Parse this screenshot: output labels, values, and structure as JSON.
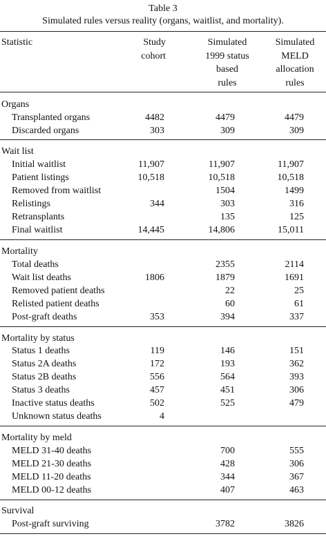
{
  "caption": {
    "number": "Table 3",
    "title": "Simulated rules versus reality (organs, waitlist, and mortality)."
  },
  "header": {
    "statistic": "Statistic",
    "col1": [
      "Study",
      "cohort"
    ],
    "col2": [
      "Simulated",
      "1999 status",
      "based",
      "rules"
    ],
    "col3": [
      "Simulated",
      "MELD",
      "allocation",
      "rules"
    ]
  },
  "sections": [
    {
      "title": "Organs",
      "rows": [
        {
          "label": "Transplanted organs",
          "study": "4482",
          "sim1999": "4479",
          "meld": "4479"
        },
        {
          "label": "Discarded organs",
          "study": "303",
          "sim1999": "309",
          "meld": "309"
        }
      ]
    },
    {
      "title": "Wait list",
      "rows": [
        {
          "label": "Initial waitlist",
          "study": "11,907",
          "sim1999": "11,907",
          "meld": "11,907"
        },
        {
          "label": "Patient listings",
          "study": "10,518",
          "sim1999": "10,518",
          "meld": "10,518"
        },
        {
          "label": "Removed from waitlist",
          "study": "",
          "sim1999": "1504",
          "meld": "1499"
        },
        {
          "label": "Relistings",
          "study": "344",
          "sim1999": "303",
          "meld": "316"
        },
        {
          "label": "Retransplants",
          "study": "",
          "sim1999": "135",
          "meld": "125"
        },
        {
          "label": "Final waitlist",
          "study": "14,445",
          "sim1999": "14,806",
          "meld": "15,011"
        }
      ]
    },
    {
      "title": "Mortality",
      "rows": [
        {
          "label": "Total deaths",
          "study": "",
          "sim1999": "2355",
          "meld": "2114"
        },
        {
          "label": "Wait list deaths",
          "study": "1806",
          "sim1999": "1879",
          "meld": "1691"
        },
        {
          "label": "Removed patient deaths",
          "study": "",
          "sim1999": "22",
          "meld": "25"
        },
        {
          "label": "Relisted patient deaths",
          "study": "",
          "sim1999": "60",
          "meld": "61"
        },
        {
          "label": "Post-graft deaths",
          "study": "353",
          "sim1999": "394",
          "meld": "337"
        }
      ]
    },
    {
      "title": "Mortality by status",
      "rows": [
        {
          "label": "Status 1 deaths",
          "study": "119",
          "sim1999": "146",
          "meld": "151"
        },
        {
          "label": "Status 2A deaths",
          "study": "172",
          "sim1999": "193",
          "meld": "362"
        },
        {
          "label": "Status 2B deaths",
          "study": "556",
          "sim1999": "564",
          "meld": "393"
        },
        {
          "label": "Status 3 deaths",
          "study": "457",
          "sim1999": "451",
          "meld": "306"
        },
        {
          "label": "Inactive status deaths",
          "study": "502",
          "sim1999": "525",
          "meld": "479"
        },
        {
          "label": "Unknown status deaths",
          "study": "4",
          "sim1999": "",
          "meld": ""
        }
      ]
    },
    {
      "title": "Mortality by meld",
      "rows": [
        {
          "label": "MELD 31-40 deaths",
          "study": "",
          "sim1999": "700",
          "meld": "555"
        },
        {
          "label": "MELD 21-30 deaths",
          "study": "",
          "sim1999": "428",
          "meld": "306"
        },
        {
          "label": "MELD 11-20 deaths",
          "study": "",
          "sim1999": "344",
          "meld": "367"
        },
        {
          "label": "MELD 00-12 deaths",
          "study": "",
          "sim1999": "407",
          "meld": "463"
        }
      ]
    },
    {
      "title": "Survival",
      "rows": [
        {
          "label": "Post-graft surviving",
          "study": "",
          "sim1999": "3782",
          "meld": "3826"
        }
      ]
    }
  ]
}
